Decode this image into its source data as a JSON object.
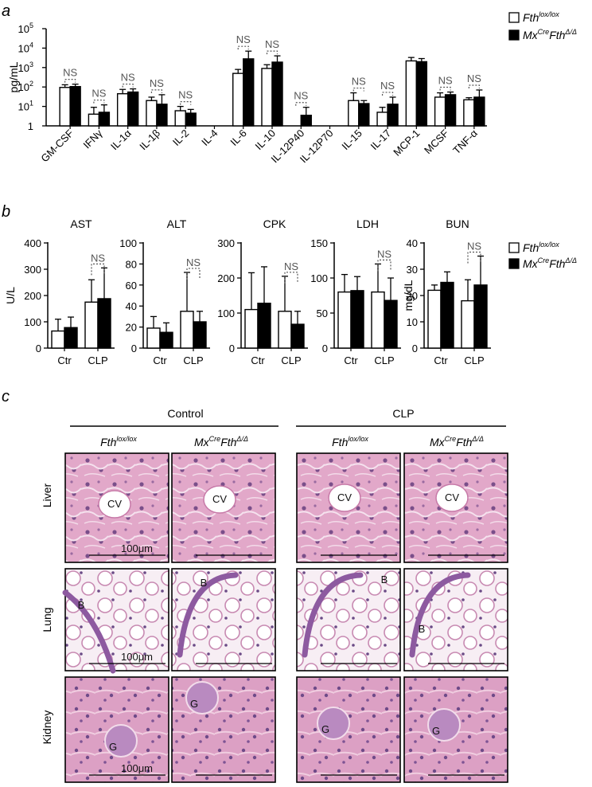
{
  "panels": {
    "a": "a",
    "b": "b",
    "c": "c"
  },
  "legend": {
    "control_base": "Fth",
    "control_sup": "lox/lox",
    "mutant_pre": "Mx",
    "mutant_pre_sup": "Cre",
    "mutant_base": "Fth",
    "mutant_sup": "Δ/Δ"
  },
  "colors": {
    "control_fill": "#ffffff",
    "mutant_fill": "#000000",
    "ns_bracket": "#555555"
  },
  "chart_data": [
    {
      "id": "a",
      "type": "bar",
      "ylabel": "pg/mL",
      "yscale": "log",
      "ylim": [
        1,
        100000
      ],
      "yticks": [
        "1",
        "10",
        "10",
        "10",
        "10",
        "10"
      ],
      "ytick_exps": [
        "",
        "1",
        "2",
        "3",
        "4",
        "5"
      ],
      "categories": [
        "GM-CSF",
        "IFNγ",
        "IL-1α",
        "IL-1β",
        "IL-2",
        "IL-4",
        "IL-6",
        "IL-10",
        "IL-12P40",
        "IL-12P70",
        "IL-15",
        "IL-17",
        "MCP-1",
        "MCSF",
        "TNF-α"
      ],
      "series": [
        {
          "name": "Fth lox/lox",
          "values": [
            95,
            4,
            45,
            20,
            6,
            null,
            500,
            900,
            null,
            null,
            20,
            5,
            2200,
            30,
            22
          ],
          "errors": [
            130,
            9,
            75,
            30,
            10,
            null,
            800,
            1400,
            null,
            null,
            50,
            9,
            3300,
            50,
            28
          ]
        },
        {
          "name": "MxCre FthΔ/Δ",
          "values": [
            105,
            5,
            55,
            13,
            4.5,
            null,
            2800,
            1900,
            3.5,
            null,
            14,
            13,
            2000,
            40,
            30
          ],
          "errors": [
            140,
            12,
            80,
            40,
            7,
            null,
            7000,
            4000,
            9,
            null,
            20,
            30,
            2900,
            55,
            70
          ]
        }
      ],
      "ns": [
        "NS",
        "NS",
        "NS",
        "NS",
        "NS",
        "",
        "NS",
        "NS",
        "NS",
        "",
        "NS",
        "NS",
        "",
        "NS",
        "NS"
      ]
    },
    {
      "id": "b1",
      "type": "bar",
      "title": "AST",
      "ylabel": "U/L",
      "ylim": [
        0,
        400
      ],
      "yticks": [
        "0",
        "100",
        "200",
        "300",
        "400"
      ],
      "categories": [
        "Ctr",
        "CLP"
      ],
      "series": [
        {
          "name": "Fth lox/lox",
          "values": [
            65,
            175
          ],
          "errors": [
            110,
            260
          ]
        },
        {
          "name": "MxCre FthΔ/Δ",
          "values": [
            78,
            188
          ],
          "errors": [
            118,
            305
          ]
        }
      ],
      "ns": [
        "",
        "NS"
      ]
    },
    {
      "id": "b2",
      "type": "bar",
      "title": "ALT",
      "ylabel": "",
      "ylim": [
        0,
        100
      ],
      "yticks": [
        "0",
        "20",
        "40",
        "60",
        "80",
        "100"
      ],
      "categories": [
        "Ctr",
        "CLP"
      ],
      "series": [
        {
          "name": "Fth lox/lox",
          "values": [
            19,
            35
          ],
          "errors": [
            30,
            72
          ]
        },
        {
          "name": "MxCre FthΔ/Δ",
          "values": [
            15,
            25
          ],
          "errors": [
            24,
            35
          ]
        }
      ],
      "ns": [
        "",
        "NS"
      ]
    },
    {
      "id": "b3",
      "type": "bar",
      "title": "CPK",
      "ylabel": "",
      "ylim": [
        0,
        300
      ],
      "yticks": [
        "0",
        "100",
        "200",
        "300"
      ],
      "categories": [
        "Ctr",
        "CLP"
      ],
      "series": [
        {
          "name": "Fth lox/lox",
          "values": [
            110,
            105
          ],
          "errors": [
            215,
            205
          ]
        },
        {
          "name": "MxCre FthΔ/Δ",
          "values": [
            128,
            68
          ],
          "errors": [
            232,
            105
          ]
        }
      ],
      "ns": [
        "",
        "NS"
      ]
    },
    {
      "id": "b4",
      "type": "bar",
      "title": "LDH",
      "ylabel": "",
      "ylim": [
        0,
        150
      ],
      "yticks": [
        "0",
        "50",
        "100",
        "150"
      ],
      "categories": [
        "Ctr",
        "CLP"
      ],
      "series": [
        {
          "name": "Fth lox/lox",
          "values": [
            80,
            80
          ],
          "errors": [
            105,
            120
          ]
        },
        {
          "name": "MxCre FthΔ/Δ",
          "values": [
            82,
            68
          ],
          "errors": [
            102,
            100
          ]
        }
      ],
      "ns": [
        "",
        "NS"
      ]
    },
    {
      "id": "b5",
      "type": "bar",
      "title": "BUN",
      "ylabel": "mg/dL",
      "ylim": [
        0,
        40
      ],
      "yticks": [
        "0",
        "10",
        "20",
        "30",
        "40"
      ],
      "categories": [
        "Ctr",
        "CLP"
      ],
      "series": [
        {
          "name": "Fth lox/lox",
          "values": [
            22,
            18
          ],
          "errors": [
            24,
            26
          ]
        },
        {
          "name": "MxCre FthΔ/Δ",
          "values": [
            25,
            24
          ],
          "errors": [
            29,
            35
          ]
        }
      ],
      "ns": [
        "",
        "NS"
      ]
    }
  ],
  "histology": {
    "groups": [
      "Control",
      "CLP"
    ],
    "rows": [
      "Liver",
      "Lung",
      "Kidney"
    ],
    "scale_label": "100μm",
    "tiles": [
      [
        "CV",
        "CV",
        "CV",
        "CV"
      ],
      [
        "B",
        "B",
        "B",
        "B"
      ],
      [
        "G",
        "G",
        "G",
        "G"
      ]
    ]
  }
}
